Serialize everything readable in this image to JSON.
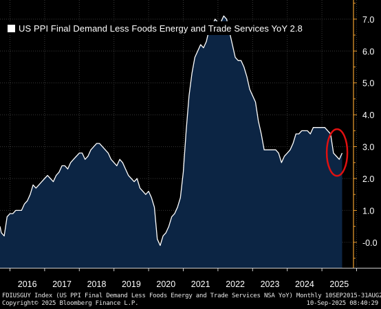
{
  "legend": {
    "label": "US PPI Final Demand Less Foods Energy and Trade Services YoY 2.8"
  },
  "footer": {
    "description": "FDIUSGUY Index (US PPI Final Demand Less Foods Energy and Trade Services NSA YoY)  Monthly 10SEP2015-31AUG2025",
    "copyright": "Copyright© 2025 Bloomberg Finance L.P.",
    "timestamp": "10-Sep-2025 08:40:29"
  },
  "chart_data": {
    "type": "area",
    "title": "",
    "xlabel": "",
    "ylabel": "",
    "ylim": [
      -0.8,
      7.6
    ],
    "y_ticks": [
      "-0.0",
      "1.0",
      "2.0",
      "3.0",
      "4.0",
      "5.0",
      "6.0",
      "7.0"
    ],
    "x_tick_labels": [
      "2016",
      "2017",
      "2018",
      "2019",
      "2020",
      "2021",
      "2022",
      "2023",
      "2024",
      "2025"
    ],
    "grid": true,
    "legend_position": "top-left",
    "last_value": 2.8,
    "colors": {
      "fill": "#0c2544",
      "line": "#ffffff",
      "axis": "#f0a030",
      "highlight": "#e01010",
      "grid": "#3a3a3a"
    },
    "series": [
      {
        "name": "US PPI Final Demand Less Foods Energy and Trade Services YoY",
        "x": [
          "2015-09",
          "2015-10",
          "2015-11",
          "2015-12",
          "2016-01",
          "2016-02",
          "2016-03",
          "2016-04",
          "2016-05",
          "2016-06",
          "2016-07",
          "2016-08",
          "2016-09",
          "2016-10",
          "2016-11",
          "2016-12",
          "2017-01",
          "2017-02",
          "2017-03",
          "2017-04",
          "2017-05",
          "2017-06",
          "2017-07",
          "2017-08",
          "2017-09",
          "2017-10",
          "2017-11",
          "2017-12",
          "2018-01",
          "2018-02",
          "2018-03",
          "2018-04",
          "2018-05",
          "2018-06",
          "2018-07",
          "2018-08",
          "2018-09",
          "2018-10",
          "2018-11",
          "2018-12",
          "2019-01",
          "2019-02",
          "2019-03",
          "2019-04",
          "2019-05",
          "2019-06",
          "2019-07",
          "2019-08",
          "2019-09",
          "2019-10",
          "2019-11",
          "2019-12",
          "2020-01",
          "2020-02",
          "2020-03",
          "2020-04",
          "2020-05",
          "2020-06",
          "2020-07",
          "2020-08",
          "2020-09",
          "2020-10",
          "2020-11",
          "2020-12",
          "2021-01",
          "2021-02",
          "2021-03",
          "2021-04",
          "2021-05",
          "2021-06",
          "2021-07",
          "2021-08",
          "2021-09",
          "2021-10",
          "2021-11",
          "2021-12",
          "2022-01",
          "2022-02",
          "2022-03",
          "2022-04",
          "2022-05",
          "2022-06",
          "2022-07",
          "2022-08",
          "2022-09",
          "2022-10",
          "2022-11",
          "2022-12",
          "2023-01",
          "2023-02",
          "2023-03",
          "2023-04",
          "2023-05",
          "2023-06",
          "2023-07",
          "2023-08",
          "2023-09",
          "2023-10",
          "2023-11",
          "2023-12",
          "2024-01",
          "2024-02",
          "2024-03",
          "2024-04",
          "2024-05",
          "2024-06",
          "2024-07",
          "2024-08",
          "2024-09",
          "2024-10",
          "2024-11",
          "2024-12",
          "2025-01",
          "2025-02",
          "2025-03",
          "2025-04",
          "2025-05",
          "2025-06",
          "2025-07",
          "2025-08"
        ],
        "values": [
          0.5,
          0.3,
          0.2,
          0.8,
          0.9,
          0.9,
          1.0,
          1.0,
          1.0,
          1.2,
          1.3,
          1.5,
          1.8,
          1.7,
          1.8,
          1.9,
          2.0,
          2.1,
          2.0,
          1.9,
          2.1,
          2.2,
          2.4,
          2.4,
          2.3,
          2.5,
          2.6,
          2.7,
          2.8,
          2.8,
          2.6,
          2.7,
          2.9,
          3.0,
          3.1,
          3.1,
          3.0,
          2.9,
          2.8,
          2.6,
          2.5,
          2.4,
          2.6,
          2.5,
          2.3,
          2.1,
          2.0,
          1.9,
          2.0,
          1.7,
          1.6,
          1.5,
          1.6,
          1.4,
          1.1,
          0.1,
          -0.1,
          0.2,
          0.3,
          0.5,
          0.8,
          0.9,
          1.1,
          1.4,
          2.2,
          3.5,
          4.6,
          5.3,
          5.8,
          6.0,
          6.2,
          6.1,
          6.3,
          6.7,
          6.8,
          7.0,
          6.9,
          6.9,
          7.1,
          7.0,
          6.6,
          6.2,
          5.8,
          5.7,
          5.7,
          5.5,
          5.2,
          4.8,
          4.6,
          4.4,
          3.8,
          3.4,
          2.9,
          2.9,
          2.9,
          2.9,
          2.9,
          2.8,
          2.5,
          2.7,
          2.8,
          2.9,
          3.1,
          3.4,
          3.4,
          3.5,
          3.5,
          3.5,
          3.4,
          3.6,
          3.6,
          3.6,
          3.6,
          3.6,
          3.5,
          3.4,
          2.8,
          2.7,
          2.6,
          2.8
        ]
      }
    ]
  }
}
